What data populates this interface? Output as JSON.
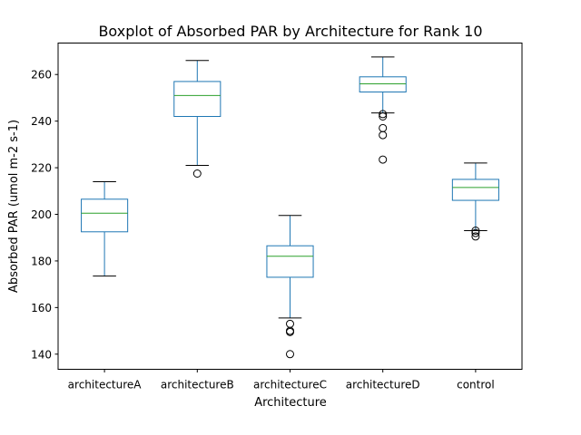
{
  "chart_data": {
    "type": "boxplot",
    "title": "Boxplot of Absorbed PAR by Architecture for Rank 10",
    "xlabel": "Architecture",
    "ylabel": "Absorbed PAR (umol m-2 s-1)",
    "ylim": [
      133.5,
      273.5
    ],
    "yticks": [
      140,
      160,
      180,
      200,
      220,
      240,
      260
    ],
    "grid": false,
    "colors": {
      "box": "#1f77b4",
      "median": "#2ca02c",
      "whisker": "#000000",
      "flier": "#000000"
    },
    "categories": [
      "architectureA",
      "architectureB",
      "architectureC",
      "architectureD",
      "control"
    ],
    "boxes": [
      {
        "name": "architectureA",
        "whislo": 173.5,
        "q1": 192.5,
        "med": 200.5,
        "q3": 206.5,
        "whishi": 214,
        "fliers": []
      },
      {
        "name": "architectureB",
        "whislo": 221,
        "q1": 242,
        "med": 251,
        "q3": 257,
        "whishi": 266,
        "fliers": [
          217.5
        ]
      },
      {
        "name": "architectureC",
        "whislo": 155.5,
        "q1": 173,
        "med": 182,
        "q3": 186.5,
        "whishi": 199.5,
        "fliers": [
          153,
          150,
          149.5,
          140
        ]
      },
      {
        "name": "architectureD",
        "whislo": 243.5,
        "q1": 252.5,
        "med": 256,
        "q3": 259,
        "whishi": 267.5,
        "fliers": [
          243,
          242,
          237,
          234,
          223.5
        ]
      },
      {
        "name": "control",
        "whislo": 193,
        "q1": 206,
        "med": 211.5,
        "q3": 215,
        "whishi": 222,
        "fliers": [
          193,
          192,
          190.5
        ]
      }
    ]
  }
}
